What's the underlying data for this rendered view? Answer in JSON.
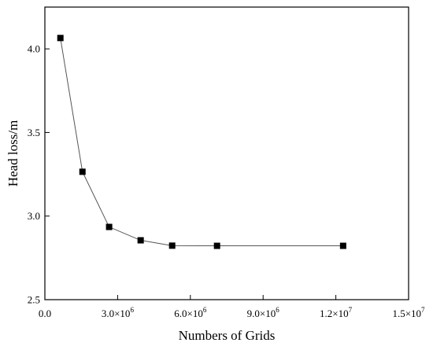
{
  "chart_data": {
    "type": "line",
    "title": "",
    "xlabel": "Numbers of Grids",
    "ylabel": "Head loss/m",
    "xlim": [
      0,
      15000000
    ],
    "ylim": [
      2.5,
      4.25
    ],
    "x_ticks": [
      {
        "value": 0,
        "label": "0.0"
      },
      {
        "value": 3000000,
        "label": "3.0×10",
        "exp": "6"
      },
      {
        "value": 6000000,
        "label": "6.0×10",
        "exp": "6"
      },
      {
        "value": 9000000,
        "label": "9.0×10",
        "exp": "6"
      },
      {
        "value": 12000000,
        "label": "1.2×10",
        "exp": "7"
      },
      {
        "value": 15000000,
        "label": "1.5×10",
        "exp": "7"
      }
    ],
    "y_ticks": [
      {
        "value": 2.5,
        "label": "2.5"
      },
      {
        "value": 3.0,
        "label": "3.0"
      },
      {
        "value": 3.5,
        "label": "3.5"
      },
      {
        "value": 4.0,
        "label": "4.0"
      }
    ],
    "grid": false,
    "legend": "none",
    "series": [
      {
        "color": "#000000",
        "marker": "square",
        "x": [
          640000,
          1550000,
          2650000,
          3950000,
          5250000,
          7100000,
          12300000
        ],
        "y": [
          4.065,
          3.265,
          2.935,
          2.855,
          2.823,
          2.822,
          2.822
        ]
      }
    ]
  }
}
